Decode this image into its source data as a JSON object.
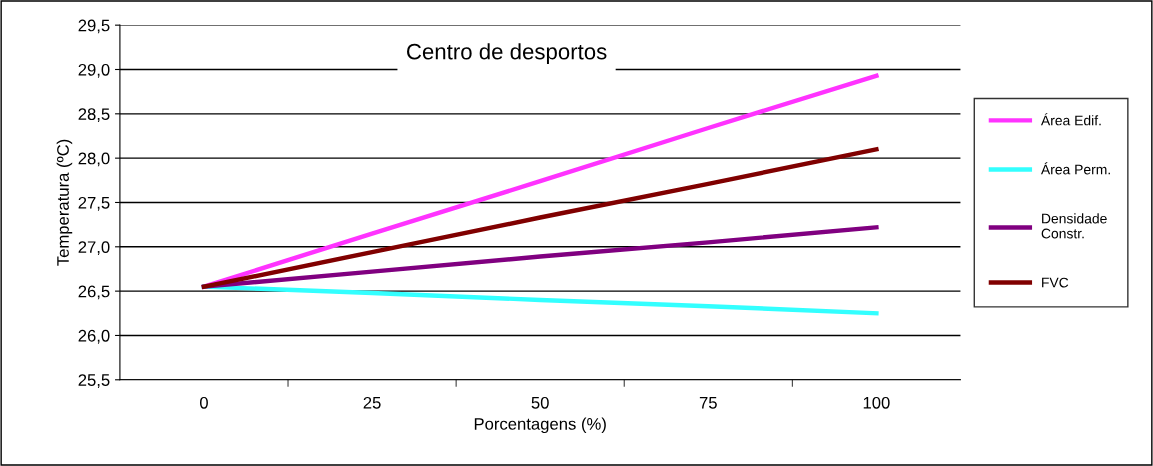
{
  "chart_data": {
    "type": "line",
    "title": "Centro de desportos",
    "xlabel": "Porcentagens (%)",
    "ylabel": "Temperatura (ºC)",
    "categories": [
      "0",
      "25",
      "50",
      "75",
      "100"
    ],
    "series": [
      {
        "name": "Área Edif.",
        "color": "#ff33ff",
        "values": [
          26.55,
          27.15,
          27.74,
          28.34,
          28.93
        ]
      },
      {
        "name": "Área Perm.",
        "color": "#33ffff",
        "values": [
          26.55,
          26.48,
          26.4,
          26.33,
          26.25
        ]
      },
      {
        "name": "Densidade\nConstr.",
        "color": "#800080",
        "values": [
          26.55,
          26.72,
          26.89,
          27.05,
          27.22
        ]
      },
      {
        "name": "FVC",
        "color": "#800000",
        "values": [
          26.55,
          26.94,
          27.33,
          27.71,
          28.1
        ]
      }
    ],
    "ylim": [
      25.5,
      29.5
    ],
    "yticks": [
      {
        "value": 25.5,
        "label": "25,5"
      },
      {
        "value": 26.0,
        "label": "26,0"
      },
      {
        "value": 26.5,
        "label": "26,5"
      },
      {
        "value": 27.0,
        "label": "27,0"
      },
      {
        "value": 27.5,
        "label": "27,5"
      },
      {
        "value": 28.0,
        "label": "28,0"
      },
      {
        "value": 28.5,
        "label": "28,5"
      },
      {
        "value": 29.0,
        "label": "29,0"
      },
      {
        "value": 29.5,
        "label": "29,5"
      }
    ],
    "grid": "y",
    "legend": "right",
    "marker": "none",
    "line_style": "solid"
  }
}
